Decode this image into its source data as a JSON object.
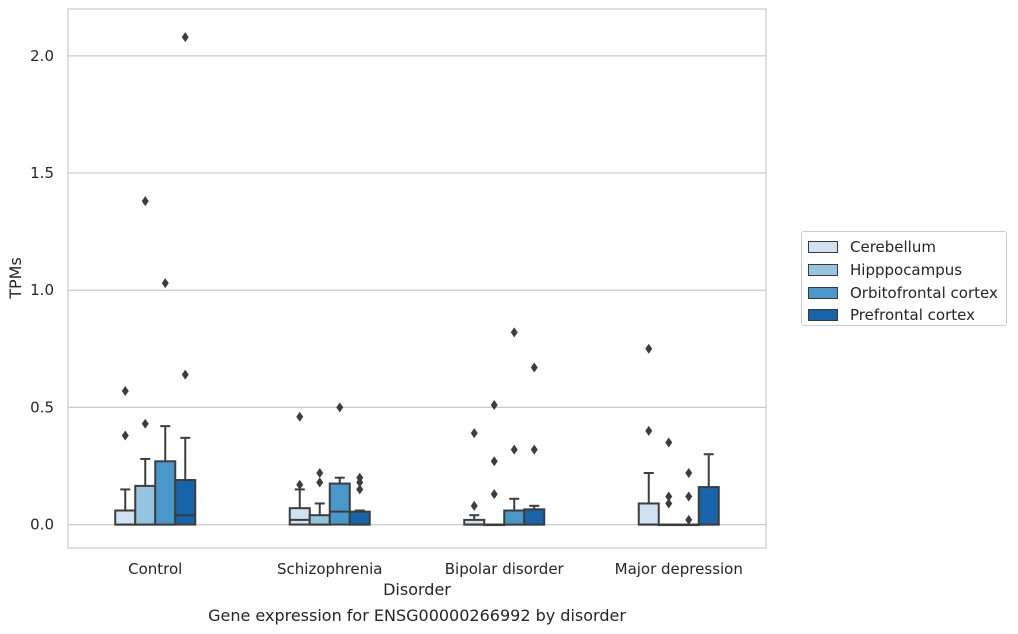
{
  "caption": "Gene expression for ENSG00000266992 by disorder",
  "chart_data": {
    "type": "box",
    "xlabel": "Disorder",
    "ylabel": "TPMs",
    "ylim": [
      -0.1,
      2.2
    ],
    "yticks": [
      0.0,
      0.5,
      1.0,
      1.5,
      2.0
    ],
    "ytick_labels": [
      "0.0",
      "0.5",
      "1.0",
      "1.5",
      "2.0"
    ],
    "grid": true,
    "legend_placement": "right",
    "categories": [
      "Control",
      "Schizophrenia",
      "Bipolar disorder",
      "Major depression"
    ],
    "series": [
      {
        "name": "Cerebellum",
        "color": "#d0e1f2",
        "boxes": [
          {
            "q1": 0.0,
            "median": 0.0,
            "q3": 0.06,
            "whisker_low": 0.0,
            "whisker_high": 0.15,
            "outliers": [
              0.38,
              0.57
            ]
          },
          {
            "q1": 0.0,
            "median": 0.02,
            "q3": 0.07,
            "whisker_low": 0.0,
            "whisker_high": 0.15,
            "outliers": [
              0.17,
              0.46
            ]
          },
          {
            "q1": 0.0,
            "median": 0.0,
            "q3": 0.02,
            "whisker_low": 0.0,
            "whisker_high": 0.04,
            "outliers": [
              0.08,
              0.39
            ]
          },
          {
            "q1": 0.0,
            "median": 0.0,
            "q3": 0.09,
            "whisker_low": 0.0,
            "whisker_high": 0.22,
            "outliers": [
              0.4,
              0.75
            ]
          }
        ]
      },
      {
        "name": "Hipppocampus",
        "color": "#94c4df",
        "boxes": [
          {
            "q1": 0.0,
            "median": 0.0,
            "q3": 0.165,
            "whisker_low": 0.0,
            "whisker_high": 0.28,
            "outliers": [
              0.43,
              1.38
            ]
          },
          {
            "q1": 0.0,
            "median": 0.0,
            "q3": 0.04,
            "whisker_low": 0.0,
            "whisker_high": 0.09,
            "outliers": [
              0.18,
              0.22
            ]
          },
          {
            "q1": 0.0,
            "median": 0.0,
            "q3": 0.0,
            "whisker_low": 0.0,
            "whisker_high": 0.0,
            "outliers": [
              0.13,
              0.27,
              0.51
            ]
          },
          {
            "q1": 0.0,
            "median": 0.0,
            "q3": 0.0,
            "whisker_low": 0.0,
            "whisker_high": 0.0,
            "outliers": [
              0.09,
              0.12,
              0.35
            ]
          }
        ]
      },
      {
        "name": "Orbitofrontal cortex",
        "color": "#4a98c9",
        "boxes": [
          {
            "q1": 0.0,
            "median": 0.0,
            "q3": 0.27,
            "whisker_low": 0.0,
            "whisker_high": 0.42,
            "outliers": [
              1.03
            ]
          },
          {
            "q1": 0.0,
            "median": 0.055,
            "q3": 0.175,
            "whisker_low": 0.0,
            "whisker_high": 0.2,
            "outliers": [
              0.5
            ]
          },
          {
            "q1": 0.0,
            "median": 0.0,
            "q3": 0.06,
            "whisker_low": 0.0,
            "whisker_high": 0.11,
            "outliers": [
              0.32,
              0.82
            ]
          },
          {
            "q1": 0.0,
            "median": 0.0,
            "q3": 0.0,
            "whisker_low": 0.0,
            "whisker_high": 0.0,
            "outliers": [
              0.02,
              0.12,
              0.22
            ]
          }
        ]
      },
      {
        "name": "Prefrontal cortex",
        "color": "#1764ab",
        "boxes": [
          {
            "q1": 0.0,
            "median": 0.04,
            "q3": 0.19,
            "whisker_low": 0.0,
            "whisker_high": 0.37,
            "outliers": [
              0.64,
              2.08
            ]
          },
          {
            "q1": 0.0,
            "median": 0.0,
            "q3": 0.055,
            "whisker_low": 0.0,
            "whisker_high": 0.06,
            "outliers": [
              0.15,
              0.18,
              0.2
            ]
          },
          {
            "q1": 0.0,
            "median": 0.0,
            "q3": 0.065,
            "whisker_low": 0.0,
            "whisker_high": 0.08,
            "outliers": [
              0.32,
              0.67
            ]
          },
          {
            "q1": 0.0,
            "median": 0.0,
            "q3": 0.16,
            "whisker_low": 0.0,
            "whisker_high": 0.3,
            "outliers": []
          }
        ]
      }
    ]
  }
}
